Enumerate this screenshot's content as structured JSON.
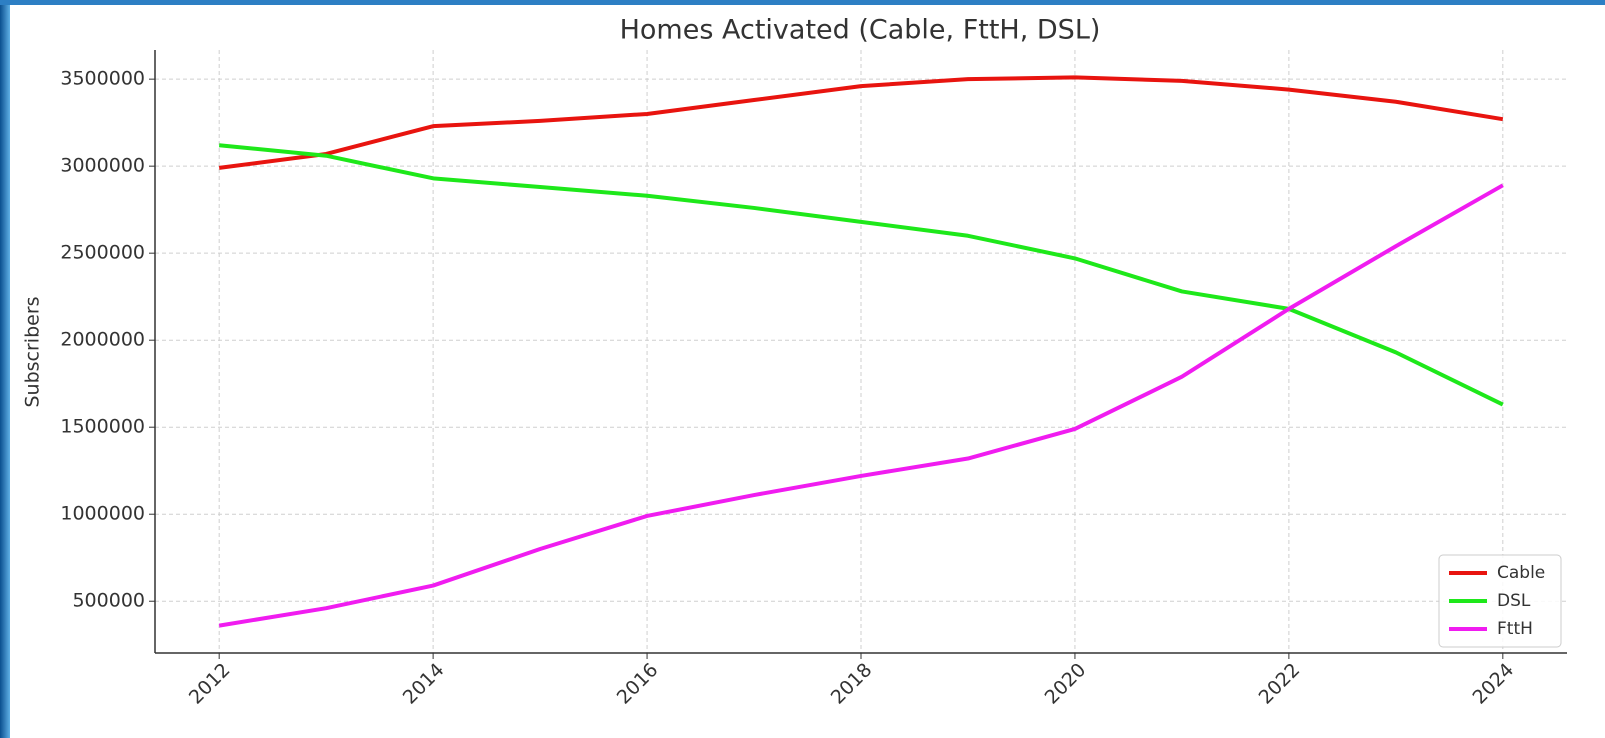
{
  "chart_data": {
    "type": "line",
    "title": "Homes Activated (Cable, FttH, DSL)",
    "y_label": "Subscribers",
    "x": [
      2012,
      2013,
      2014,
      2015,
      2016,
      2017,
      2018,
      2019,
      2020,
      2021,
      2022,
      2023,
      2024
    ],
    "series": [
      {
        "name": "Cable",
        "color": "#e8140f",
        "values": [
          2990000,
          3070000,
          3230000,
          3260000,
          3300000,
          3380000,
          3460000,
          3500000,
          3510000,
          3490000,
          3440000,
          3370000,
          3270000
        ]
      },
      {
        "name": "DSL",
        "color": "#1ee81a",
        "values": [
          3120000,
          3060000,
          2930000,
          2880000,
          2830000,
          2760000,
          2680000,
          2600000,
          2470000,
          2280000,
          2180000,
          1930000,
          1630000
        ]
      },
      {
        "name": "FttH",
        "color": "#f01cf0",
        "values": [
          360000,
          460000,
          590000,
          800000,
          990000,
          1110000,
          1220000,
          1320000,
          1490000,
          1790000,
          2180000,
          2540000,
          2890000
        ]
      }
    ],
    "xlim": [
      2011.4,
      2024.6
    ],
    "xticks": [
      2012,
      2014,
      2016,
      2018,
      2020,
      2022,
      2024
    ],
    "ylim": [
      202500,
      3667500
    ],
    "yticks": [
      500000,
      1000000,
      1500000,
      2000000,
      2500000,
      3000000,
      3500000
    ],
    "grid": true,
    "legend": "lower right"
  }
}
